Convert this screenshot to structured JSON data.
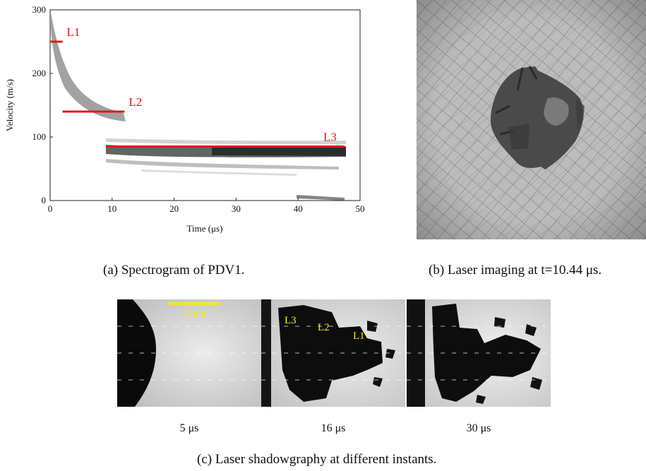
{
  "chart_data": {
    "type": "scatter",
    "xlabel": "Time (μs)",
    "ylabel": "Velocity (m/s)",
    "xlim": [
      0,
      50
    ],
    "ylim": [
      0,
      300
    ],
    "xticks": [
      "0",
      "10",
      "20",
      "30",
      "40",
      "50"
    ],
    "yticks": [
      "0",
      "100",
      "200",
      "300"
    ],
    "levels": [
      {
        "name": "L1",
        "x_start": 0,
        "x_end": 2,
        "y": 250
      },
      {
        "name": "L2",
        "x_start": 2,
        "x_end": 12,
        "y": 140
      },
      {
        "name": "L3",
        "x_start": 9,
        "x_end": 47.5,
        "y": 85
      }
    ],
    "line_color": "#e0191b"
  },
  "captions": {
    "a": "(a)  Spectrogram of PDV1.",
    "b": "(b)  Laser imaging at t=10.44 μs.",
    "c": "(c)  Laser shadowgraphy at different instants."
  },
  "shadowgraphy": {
    "scale_bar": "2 mm",
    "scale_color": "#f2e81a",
    "frames": [
      {
        "time": "5 μs"
      },
      {
        "time": "16 μs",
        "labels": [
          "L3",
          "L2",
          "L1"
        ]
      },
      {
        "time": "30 μs"
      }
    ]
  }
}
